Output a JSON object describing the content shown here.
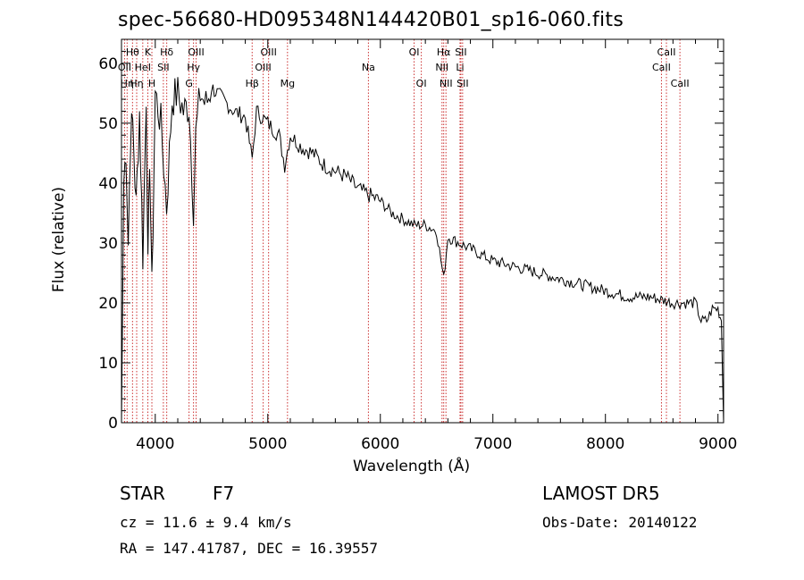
{
  "chart_data": {
    "type": "line",
    "title": "spec-56680-HD095348N144420B01_sp16-060.fits",
    "xlabel": "Wavelength (Å)",
    "ylabel": "Flux (relative)",
    "xlim": [
      3700,
      9050
    ],
    "ylim": [
      0,
      64
    ],
    "xticks": [
      4000,
      5000,
      6000,
      7000,
      8000,
      9000
    ],
    "yticks": [
      0,
      10,
      20,
      30,
      40,
      50,
      60
    ],
    "line_color": "#000000",
    "marker_color": "#cc3333",
    "series": [
      {
        "x": [
          3700,
          3720,
          3740,
          3760,
          3780,
          3800,
          3830,
          3860,
          3890,
          3920,
          3935,
          3950,
          3970,
          4000,
          4050,
          4101,
          4150,
          4200,
          4250,
          4300,
          4340,
          4360,
          4400,
          4450,
          4500,
          4600,
          4700,
          4800,
          4861,
          4900,
          5000,
          5100,
          5150,
          5200,
          5300,
          5400,
          5500,
          5600,
          5700,
          5800,
          5900,
          6000,
          6100,
          6200,
          6300,
          6400,
          6500,
          6563,
          6600,
          6700,
          6800,
          6900,
          7000,
          7200,
          7400,
          7600,
          7800,
          8000,
          8200,
          8400,
          8600,
          8700,
          8800,
          8850,
          8900,
          8950,
          9000,
          9030,
          9050
        ],
        "y": [
          0,
          40,
          46,
          30,
          48,
          50,
          36,
          52,
          28,
          55,
          25,
          45,
          22,
          55,
          50,
          36,
          54,
          55,
          52,
          53,
          36,
          48,
          55,
          53,
          56,
          54,
          52,
          51,
          44,
          52,
          50,
          48,
          43,
          48,
          46,
          45,
          43,
          42,
          41,
          39,
          38,
          37,
          35,
          34,
          33,
          33,
          32,
          24,
          31,
          30,
          29,
          28,
          27,
          26,
          25,
          24,
          23,
          22,
          21,
          21,
          20,
          20,
          20,
          17,
          17,
          19,
          19,
          17,
          0
        ]
      }
    ],
    "lines": [
      {
        "wave": 3727,
        "label": "OII",
        "row": 2
      },
      {
        "wave": 3750,
        "label": "Hη",
        "row": 3
      },
      {
        "wave": 3798,
        "label": "Hθ",
        "row": 1
      },
      {
        "wave": 3835,
        "label": "Hη",
        "row": 3
      },
      {
        "wave": 3889,
        "label": "HeI",
        "row": 2
      },
      {
        "wave": 3934,
        "label": "K",
        "row": 1
      },
      {
        "wave": 3970,
        "label": "H",
        "row": 3
      },
      {
        "wave": 4072,
        "label": "SII",
        "row": 2
      },
      {
        "wave": 4102,
        "label": "Hδ",
        "row": 1
      },
      {
        "wave": 4300,
        "label": "G",
        "row": 3
      },
      {
        "wave": 4340,
        "label": "Hγ",
        "row": 2
      },
      {
        "wave": 4363,
        "label": "OIII",
        "row": 1
      },
      {
        "wave": 4861,
        "label": "Hβ",
        "row": 3
      },
      {
        "wave": 4959,
        "label": "OIII",
        "row": 2
      },
      {
        "wave": 5007,
        "label": "OIII",
        "row": 1
      },
      {
        "wave": 5175,
        "label": "Mg",
        "row": 3
      },
      {
        "wave": 5894,
        "label": "Na",
        "row": 2
      },
      {
        "wave": 6300,
        "label": "OI",
        "row": 1
      },
      {
        "wave": 6364,
        "label": "OI",
        "row": 3
      },
      {
        "wave": 6548,
        "label": "NII",
        "row": 2
      },
      {
        "wave": 6563,
        "label": "Hα",
        "row": 1
      },
      {
        "wave": 6583,
        "label": "NII",
        "row": 3
      },
      {
        "wave": 6708,
        "label": "Li",
        "row": 2
      },
      {
        "wave": 6716,
        "label": "SII",
        "row": 1
      },
      {
        "wave": 6731,
        "label": "SII",
        "row": 3
      },
      {
        "wave": 8498,
        "label": "CaII",
        "row": 2
      },
      {
        "wave": 8542,
        "label": "CaII",
        "row": 1
      },
      {
        "wave": 8662,
        "label": "CaII",
        "row": 3
      }
    ]
  },
  "info": {
    "class": "STAR",
    "subclass": "F7",
    "survey": "LAMOST DR5",
    "cz": "cz = 11.6 ± 9.4 km/s",
    "obs_date": "Obs-Date: 20140122",
    "coords": "RA = 147.41787, DEC =  16.39557"
  }
}
